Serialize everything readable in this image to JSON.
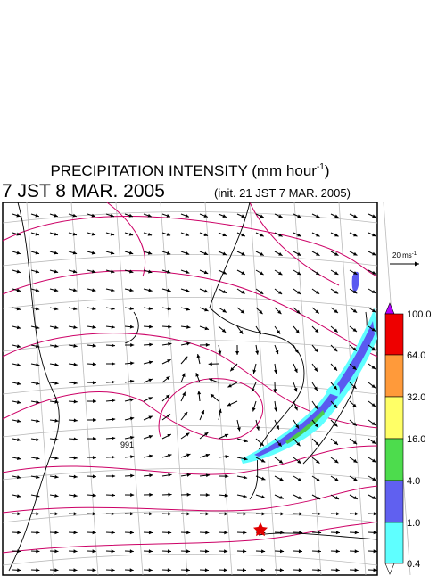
{
  "header": {
    "title": "PRECIPITATION INTENSITY (mm hour",
    "title_exponent": "-1",
    "title_close": ")",
    "valid_time": "7 JST 8 MAR. 2005",
    "init_time": "(init. 21 JST 7 MAR. 2005)"
  },
  "vector_legend": {
    "label": "20 ms",
    "exponent": "-1"
  },
  "map": {
    "pressure_label": "991"
  },
  "colorbar": {
    "labels": [
      "100.0",
      "64.0",
      "32.0",
      "16.0",
      "4.0",
      "1.0",
      "0.4"
    ]
  }
}
